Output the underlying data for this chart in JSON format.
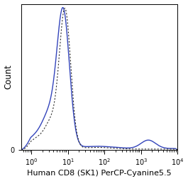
{
  "title": "",
  "xlabel": "Human CD8 (SK1) PerCP-Cyanine5.5",
  "ylabel": "Count",
  "background_color": "#ffffff",
  "plot_bg_color": "#ffffff",
  "solid_color": "#3344bb",
  "dotted_color": "#333333",
  "xlabel_fontsize": 8.0,
  "ylabel_fontsize": 8.5,
  "tick_fontsize": 7.0,
  "xlim_low_log": -0.28,
  "xlim_high_log": 4.0,
  "ylim_max": 260
}
